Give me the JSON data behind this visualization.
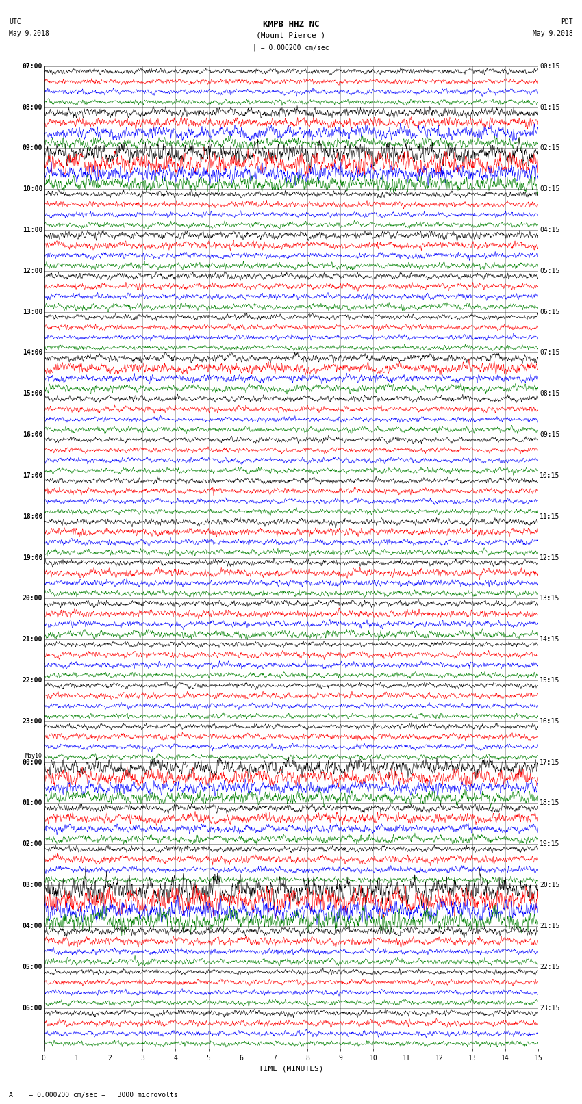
{
  "title_line1": "KMPB HHZ NC",
  "title_line2": "(Mount Pierce )",
  "title_scale": "| = 0.000200 cm/sec",
  "bottom_label": "A  | = 0.000200 cm/sec =   3000 microvolts",
  "xlabel": "TIME (MINUTES)",
  "xticks": [
    0,
    1,
    2,
    3,
    4,
    5,
    6,
    7,
    8,
    9,
    10,
    11,
    12,
    13,
    14,
    15
  ],
  "colors": [
    "black",
    "red",
    "blue",
    "green"
  ],
  "utc_times": [
    "07:00",
    "08:00",
    "09:00",
    "10:00",
    "11:00",
    "12:00",
    "13:00",
    "14:00",
    "15:00",
    "16:00",
    "17:00",
    "18:00",
    "19:00",
    "20:00",
    "21:00",
    "22:00",
    "23:00",
    "May10\n00:00",
    "01:00",
    "02:00",
    "03:00",
    "04:00",
    "05:00",
    "06:00"
  ],
  "pdt_times": [
    "00:15",
    "01:15",
    "02:15",
    "03:15",
    "04:15",
    "05:15",
    "06:15",
    "07:15",
    "08:15",
    "09:15",
    "10:15",
    "11:15",
    "12:15",
    "13:15",
    "14:15",
    "15:15",
    "16:15",
    "17:15",
    "18:15",
    "19:15",
    "20:15",
    "21:15",
    "22:15",
    "23:15"
  ],
  "bg_color": "white",
  "font_size_title": 9,
  "font_size_label": 7,
  "font_size_tick": 7,
  "amplitude_map": {
    "0": [
      1.0,
      1.0,
      1.0,
      1.0
    ],
    "1": [
      1.8,
      2.0,
      2.5,
      2.0
    ],
    "2": [
      4.0,
      4.0,
      3.5,
      3.0
    ],
    "3": [
      1.2,
      1.2,
      1.0,
      1.0
    ],
    "4": [
      1.5,
      1.5,
      1.2,
      1.2
    ],
    "5": [
      1.2,
      1.2,
      1.2,
      1.2
    ],
    "6": [
      1.0,
      1.0,
      1.0,
      1.0
    ],
    "7": [
      1.5,
      2.0,
      1.5,
      1.5
    ],
    "8": [
      1.2,
      1.2,
      1.0,
      1.0
    ],
    "9": [
      1.0,
      1.0,
      1.0,
      1.0
    ],
    "10": [
      1.0,
      1.2,
      1.0,
      1.0
    ],
    "11": [
      1.2,
      1.5,
      1.2,
      1.2
    ],
    "12": [
      1.2,
      1.5,
      1.2,
      1.2
    ],
    "13": [
      1.2,
      1.5,
      1.2,
      1.5
    ],
    "14": [
      1.0,
      1.2,
      1.2,
      1.0
    ],
    "15": [
      1.0,
      1.2,
      1.0,
      1.0
    ],
    "16": [
      1.0,
      1.2,
      1.0,
      1.0
    ],
    "17": [
      3.0,
      3.0,
      2.5,
      2.5
    ],
    "18": [
      1.5,
      2.0,
      1.5,
      1.5
    ],
    "19": [
      1.2,
      1.5,
      1.2,
      1.2
    ],
    "20": [
      5.0,
      5.0,
      4.0,
      4.0
    ],
    "21": [
      1.5,
      1.5,
      1.2,
      1.2
    ],
    "22": [
      1.0,
      1.0,
      1.0,
      1.0
    ],
    "23": [
      1.2,
      1.2,
      1.0,
      1.0
    ]
  }
}
